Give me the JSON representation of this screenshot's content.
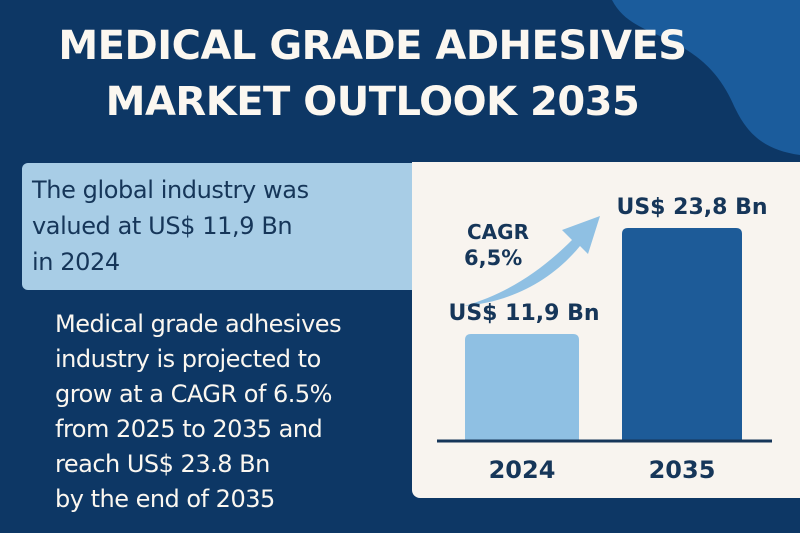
{
  "header": {
    "title_line1": "MEDICAL GRADE ADHESIVES",
    "title_line2": "MARKET OUTLOOK 2035"
  },
  "callout": {
    "lines": [
      "The global industry was",
      "valued at US$ 11,9 Bn",
      "in 2024"
    ]
  },
  "summary": {
    "lines": [
      "Medical grade adhesives",
      "industry is projected to",
      "grow at a CAGR of 6.5%",
      "from 2025 to 2035 and",
      "reach US$ 23.8 Bn",
      "by the end of 2035"
    ]
  },
  "colors": {
    "background": "#0d3765",
    "accent_blob": "#1b5c9c",
    "panel": "#f8f4ef",
    "bar_2024": "#8fc0e3",
    "bar_2035": "#1d5b98",
    "arrow": "#8fc0e3",
    "text_dark": "#163659"
  },
  "chart_data": {
    "type": "bar",
    "categories": [
      "2024",
      "2035"
    ],
    "values": [
      11.9,
      23.8
    ],
    "value_labels": [
      "US$ 11,9 Bn",
      "US$ 23,8 Bn"
    ],
    "unit": "US$ Bn",
    "annotation": {
      "line1": "CAGR",
      "line2": "6,5%",
      "icon": "trend-arrow-up-icon"
    },
    "ylim": [
      0,
      23.8
    ],
    "grid": false,
    "title": "",
    "xlabel": "",
    "ylabel": ""
  }
}
